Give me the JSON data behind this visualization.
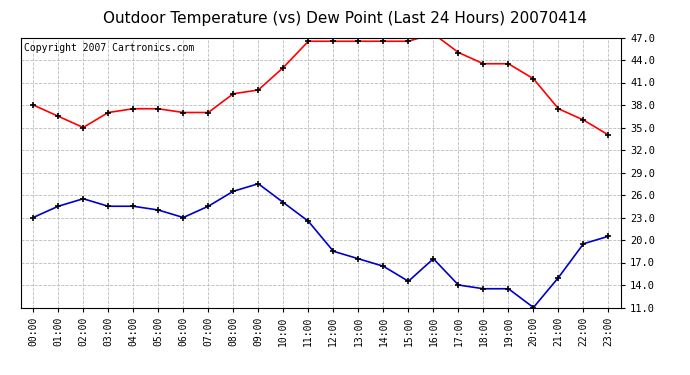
{
  "title": "Outdoor Temperature (vs) Dew Point (Last 24 Hours) 20070414",
  "copyright": "Copyright 2007 Cartronics.com",
  "hours": [
    "00:00",
    "01:00",
    "02:00",
    "03:00",
    "04:00",
    "05:00",
    "06:00",
    "07:00",
    "08:00",
    "09:00",
    "10:00",
    "11:00",
    "12:00",
    "13:00",
    "14:00",
    "15:00",
    "16:00",
    "17:00",
    "18:00",
    "19:00",
    "20:00",
    "21:00",
    "22:00",
    "23:00"
  ],
  "temp": [
    38.0,
    36.5,
    35.0,
    37.0,
    37.5,
    37.5,
    37.0,
    37.0,
    39.5,
    40.0,
    43.0,
    46.5,
    46.5,
    46.5,
    46.5,
    46.5,
    47.5,
    45.0,
    43.5,
    43.5,
    41.5,
    37.5,
    36.0,
    34.0
  ],
  "dew": [
    23.0,
    24.5,
    25.5,
    24.5,
    24.5,
    24.0,
    23.0,
    24.5,
    26.5,
    27.5,
    25.0,
    22.5,
    18.5,
    17.5,
    16.5,
    14.5,
    17.5,
    14.0,
    13.5,
    13.5,
    11.0,
    15.0,
    19.5,
    20.5
  ],
  "temp_color": "#ff0000",
  "dew_color": "#0000cc",
  "bg_color": "#ffffff",
  "plot_bg": "#ffffff",
  "grid_color": "#bbbbbb",
  "ylim_min": 11.0,
  "ylim_max": 47.0,
  "yticks": [
    11.0,
    14.0,
    17.0,
    20.0,
    23.0,
    26.0,
    29.0,
    32.0,
    35.0,
    38.0,
    41.0,
    44.0,
    47.0
  ],
  "title_fontsize": 11,
  "copyright_fontsize": 7
}
